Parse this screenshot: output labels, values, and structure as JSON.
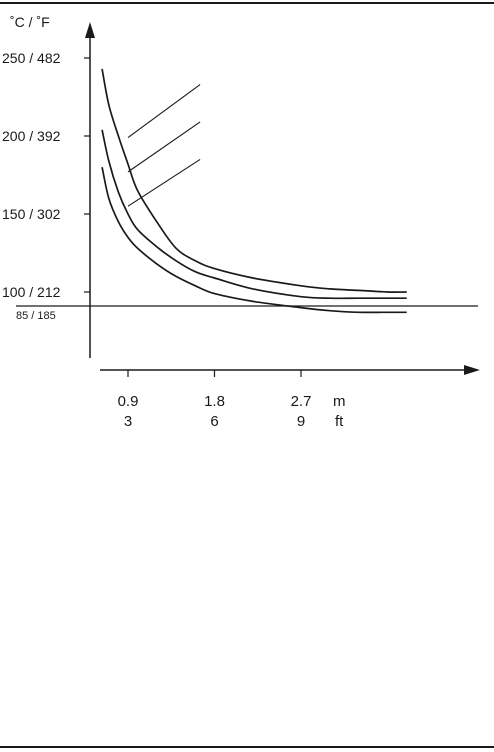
{
  "chart_data": {
    "type": "line",
    "ylabel": "˚C / ˚F",
    "y_unit_c": "°C",
    "y_ticks": [
      {
        "label": "250 / 482",
        "value": 250
      },
      {
        "label": "200 / 392",
        "value": 200
      },
      {
        "label": "150 / 302",
        "value": 150
      },
      {
        "label": "100 / 212",
        "value": 100
      }
    ],
    "threshold": {
      "label": "85 / 185",
      "value": 85
    },
    "ylim": [
      60,
      270
    ],
    "x_ticks": [
      {
        "value": 0.9,
        "label_m": "0.9",
        "label_ft": "3"
      },
      {
        "value": 1.8,
        "label_m": "1.8",
        "label_ft": "6"
      },
      {
        "value": 2.7,
        "label_m": "2.7",
        "label_ft": "9"
      }
    ],
    "x_unit_m": "m",
    "x_unit_ft": "ft",
    "xlim": [
      0.54,
      4.0
    ],
    "series": [
      {
        "x": [
          0.63,
          0.7,
          0.8,
          0.9,
          1.0,
          1.2,
          1.4,
          1.6,
          1.8,
          2.2,
          2.7,
          3.0,
          3.3,
          3.6,
          3.8
        ],
        "y": [
          243,
          220,
          200,
          182,
          165,
          145,
          128,
          120,
          115,
          109,
          104,
          102,
          101,
          100,
          100
        ]
      },
      {
        "x": [
          0.63,
          0.7,
          0.8,
          0.9,
          1.0,
          1.2,
          1.4,
          1.6,
          1.8,
          2.2,
          2.7,
          3.0,
          3.3,
          3.6,
          3.8
        ],
        "y": [
          204,
          184,
          164,
          150,
          140,
          129,
          120,
          113,
          109,
          102,
          97,
          96,
          96,
          96,
          96
        ]
      },
      {
        "x": [
          0.63,
          0.7,
          0.8,
          0.9,
          1.0,
          1.2,
          1.4,
          1.6,
          1.8,
          2.2,
          2.7,
          3.0,
          3.3,
          3.6,
          3.8
        ],
        "y": [
          180,
          160,
          145,
          135,
          128,
          118,
          110,
          104,
          99,
          94,
          90,
          88,
          87,
          87,
          87
        ]
      }
    ],
    "leaders": [
      {
        "from": [
          0.9,
          199
        ],
        "to": [
          1.65,
          233
        ]
      },
      {
        "from": [
          0.9,
          177
        ],
        "to": [
          1.65,
          209
        ]
      },
      {
        "from": [
          0.9,
          155
        ],
        "to": [
          1.65,
          185
        ]
      }
    ]
  }
}
